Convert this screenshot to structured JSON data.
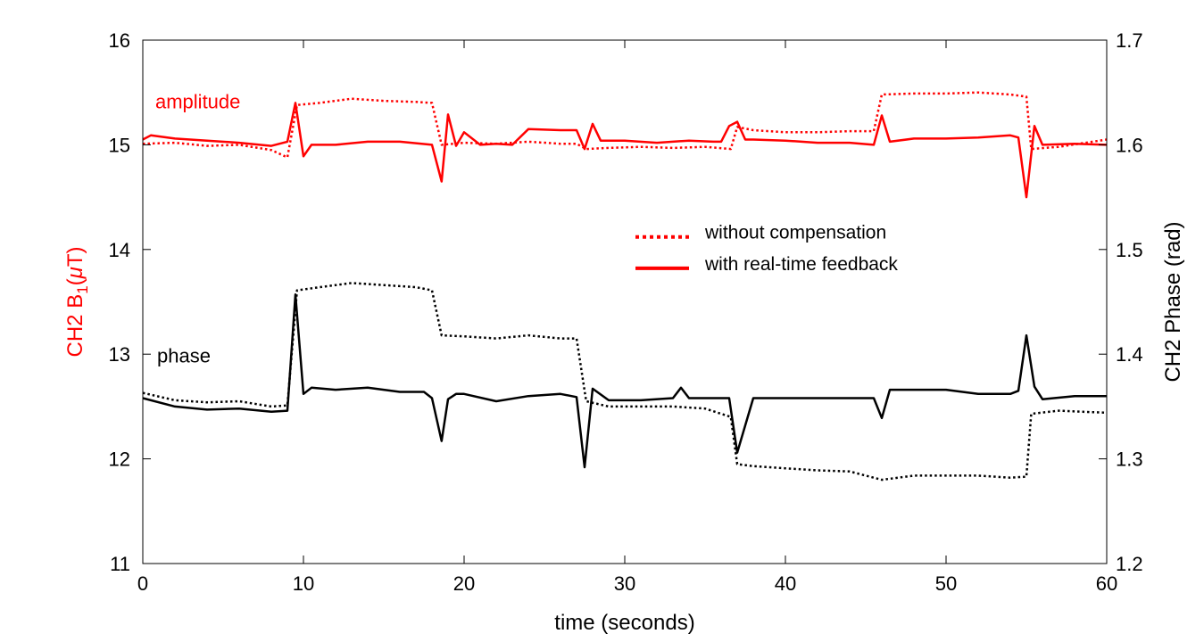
{
  "chart_data": {
    "type": "line",
    "xlabel": "time (seconds)",
    "ylabel_left": {
      "prefix": "CH2 B",
      "sub": "1",
      "suffix": "(",
      "mu": "μ",
      "unit": "T)"
    },
    "ylabel_right": "CH2 Phase (rad)",
    "xlim": [
      0,
      60
    ],
    "ylim_left": [
      11,
      16
    ],
    "ylim_right": [
      1.2,
      1.7
    ],
    "x_ticks": [
      "0",
      "10",
      "20",
      "30",
      "40",
      "50",
      "60"
    ],
    "y_left_ticks": [
      "11",
      "12",
      "13",
      "14",
      "15",
      "16"
    ],
    "y_right_ticks": [
      "1.2",
      "1.3",
      "1.4",
      "1.5",
      "1.6",
      "1.7"
    ],
    "grid": false,
    "legend": {
      "position": "center-right",
      "entries": [
        {
          "label": "without compensation",
          "style": "dotted"
        },
        {
          "label": "with real-time feedback",
          "style": "solid"
        }
      ]
    },
    "annotations": [
      {
        "text": "amplitude",
        "color": "#ff0000"
      },
      {
        "text": "phase",
        "color": "#000000"
      }
    ],
    "colors": {
      "amplitude": "#ff0000",
      "phase": "#000000"
    },
    "series": [
      {
        "group": "amplitude",
        "axis": "left",
        "style": "dotted",
        "x": [
          0,
          2,
          4,
          6,
          8,
          9,
          9.6,
          11,
          13,
          15,
          17,
          18,
          18.6,
          20,
          22,
          24,
          26,
          27,
          27.6,
          29,
          31,
          33,
          35,
          36.6,
          37,
          38,
          40,
          42,
          44,
          45.5,
          46,
          48,
          50,
          52,
          54,
          55,
          55.3,
          57,
          60
        ],
        "y": [
          15.01,
          15.02,
          14.99,
          15.0,
          14.95,
          14.88,
          15.38,
          15.4,
          15.44,
          15.42,
          15.41,
          15.4,
          15.0,
          15.02,
          15.01,
          15.03,
          15.01,
          15.01,
          14.96,
          14.97,
          14.98,
          14.97,
          14.98,
          14.96,
          15.17,
          15.14,
          15.12,
          15.12,
          15.13,
          15.13,
          15.48,
          15.49,
          15.49,
          15.5,
          15.48,
          15.46,
          14.96,
          14.98,
          15.05
        ]
      },
      {
        "group": "amplitude",
        "axis": "left",
        "style": "solid",
        "x": [
          0,
          0.5,
          2,
          4,
          6,
          8,
          9,
          9.5,
          10,
          10.5,
          12,
          14,
          16,
          18,
          18.6,
          19,
          19.5,
          20,
          21,
          22,
          23,
          24,
          26,
          27,
          27.5,
          28,
          28.5,
          30,
          32,
          34,
          35.5,
          36,
          36.5,
          37,
          37.5,
          38,
          40,
          42,
          44,
          45.5,
          46,
          46.5,
          48,
          50,
          52,
          54,
          54.5,
          55,
          55.5,
          56,
          58,
          60
        ],
        "y": [
          15.05,
          15.09,
          15.06,
          15.04,
          15.02,
          14.99,
          15.03,
          15.4,
          14.89,
          15.0,
          15.0,
          15.03,
          15.03,
          15.0,
          14.65,
          15.29,
          14.99,
          15.12,
          15.0,
          15.01,
          15.0,
          15.15,
          15.14,
          15.14,
          14.96,
          15.2,
          15.04,
          15.04,
          15.02,
          15.04,
          15.03,
          15.03,
          15.18,
          15.22,
          15.05,
          15.05,
          15.04,
          15.02,
          15.02,
          15.0,
          15.28,
          15.03,
          15.06,
          15.06,
          15.07,
          15.09,
          15.07,
          14.5,
          15.18,
          15.0,
          15.01,
          15.0
        ]
      },
      {
        "group": "phase",
        "axis": "left",
        "style": "dotted",
        "x": [
          0,
          2,
          4,
          6,
          8,
          9,
          9.6,
          11,
          13,
          15,
          17,
          18,
          18.6,
          20,
          22,
          24,
          26,
          27,
          27.6,
          29,
          31,
          33,
          35,
          36.6,
          37,
          38,
          40,
          42,
          44,
          46,
          48,
          50,
          52,
          54,
          55,
          55.3,
          57,
          60
        ],
        "y": [
          12.63,
          12.56,
          12.54,
          12.55,
          12.5,
          12.51,
          13.61,
          13.64,
          13.68,
          13.66,
          13.64,
          13.61,
          13.18,
          13.17,
          13.15,
          13.18,
          13.15,
          13.15,
          12.55,
          12.5,
          12.5,
          12.5,
          12.48,
          12.4,
          11.95,
          11.93,
          11.91,
          11.89,
          11.88,
          11.8,
          11.84,
          11.84,
          11.84,
          11.82,
          11.83,
          12.43,
          12.46,
          12.44
        ]
      },
      {
        "group": "phase",
        "axis": "left",
        "style": "solid",
        "x": [
          0,
          2,
          4,
          6,
          8,
          9,
          9.5,
          10,
          10.5,
          12,
          14,
          16,
          17.5,
          18,
          18.6,
          19,
          19.5,
          20,
          22,
          24,
          26,
          27,
          27.5,
          28,
          29,
          31,
          33,
          33.5,
          34,
          36,
          36.5,
          37,
          38,
          40,
          42,
          44,
          45.5,
          46,
          46.5,
          48,
          50,
          52,
          54,
          54.5,
          55,
          55.5,
          56,
          58,
          60
        ],
        "y": [
          12.58,
          12.5,
          12.47,
          12.48,
          12.45,
          12.46,
          13.57,
          12.62,
          12.68,
          12.66,
          12.68,
          12.64,
          12.64,
          12.58,
          12.17,
          12.57,
          12.62,
          12.62,
          12.55,
          12.6,
          12.62,
          12.59,
          11.92,
          12.67,
          12.56,
          12.56,
          12.58,
          12.68,
          12.58,
          12.58,
          12.58,
          12.06,
          12.58,
          12.58,
          12.58,
          12.58,
          12.58,
          12.39,
          12.66,
          12.66,
          12.66,
          12.62,
          12.62,
          12.65,
          13.18,
          12.69,
          12.57,
          12.6,
          12.6
        ]
      }
    ]
  }
}
